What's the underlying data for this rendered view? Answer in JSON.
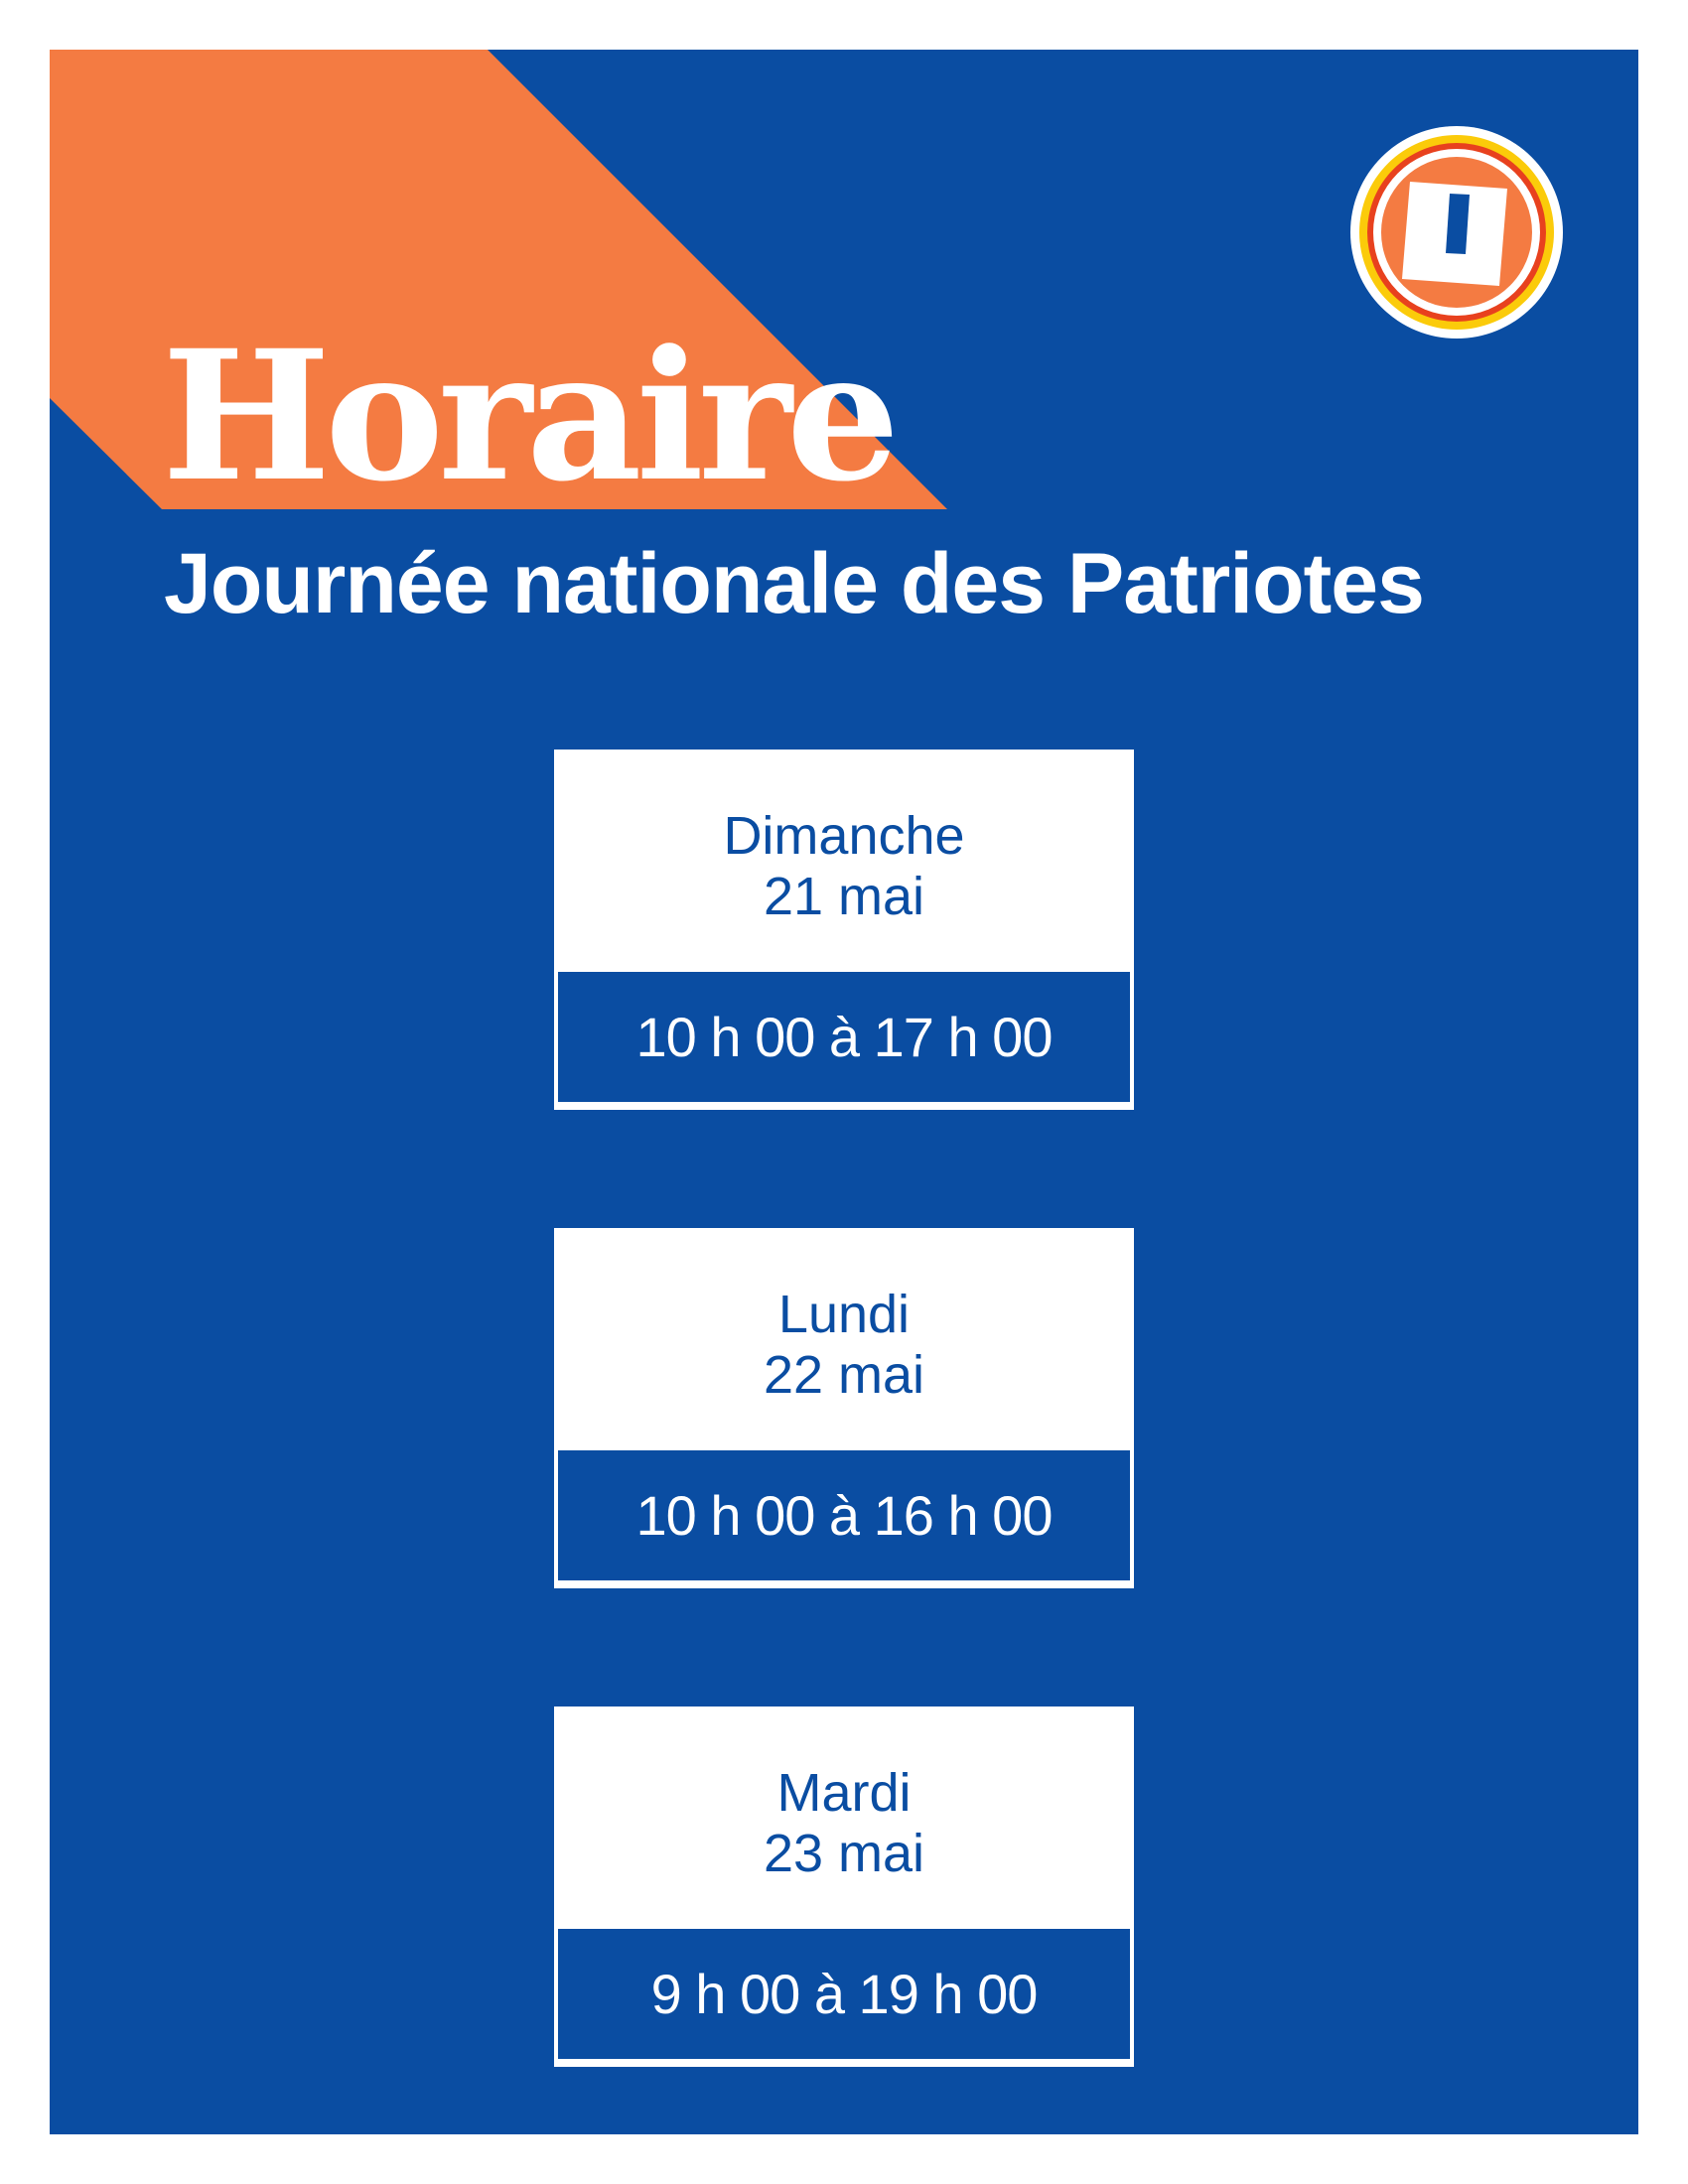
{
  "header": {
    "title": "Horaire",
    "subtitle": "Journée nationale des Patriotes"
  },
  "schedule": [
    {
      "day": "Dimanche",
      "date": "21 mai",
      "hours": "10 h 00 à 17 h 00"
    },
    {
      "day": "Lundi",
      "date": "22 mai",
      "hours": "10 h 00 à 16 h 00"
    },
    {
      "day": "Mardi",
      "date": "23 mai",
      "hours": "9 h 00 à 19 h 00"
    }
  ]
}
